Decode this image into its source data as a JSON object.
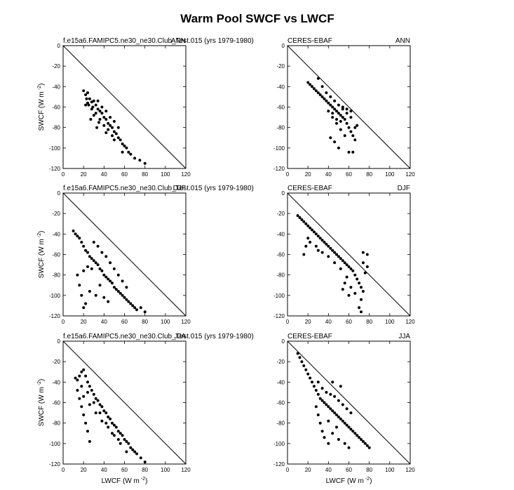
{
  "figure": {
    "title": "Warm Pool SWCF vs LWCF",
    "xlabel": "LWCF (W m",
    "ylabel": "SWCF (W m",
    "unit_exponent": "-2"
  },
  "chart_data": [
    {
      "type": "scatter",
      "left_label": "f.e15a6.FAMIPC5.ne30_ne30.Club_Test.015 (yrs 1979-1980)",
      "season": "ANN",
      "xlim": [
        0,
        120
      ],
      "ylim": [
        -120,
        0
      ],
      "xticks": [
        0,
        20,
        40,
        60,
        80,
        100,
        120
      ],
      "yticks": [
        0,
        -20,
        -40,
        -60,
        -80,
        -100,
        -120
      ],
      "reference_line": "1:1 (SWCF = -LWCF)",
      "points": [
        [
          20,
          -44
        ],
        [
          22,
          -48
        ],
        [
          24,
          -46
        ],
        [
          26,
          -52
        ],
        [
          28,
          -55
        ],
        [
          30,
          -54
        ],
        [
          32,
          -58
        ],
        [
          34,
          -62
        ],
        [
          36,
          -64
        ],
        [
          38,
          -66
        ],
        [
          40,
          -70
        ],
        [
          42,
          -72
        ],
        [
          44,
          -76
        ],
        [
          46,
          -78
        ],
        [
          48,
          -80
        ],
        [
          50,
          -84
        ],
        [
          52,
          -86
        ],
        [
          54,
          -90
        ],
        [
          56,
          -92
        ],
        [
          58,
          -96
        ],
        [
          60,
          -98
        ],
        [
          62,
          -100
        ],
        [
          64,
          -104
        ],
        [
          66,
          -106
        ],
        [
          70,
          -110
        ],
        [
          75,
          -112
        ],
        [
          80,
          -115
        ],
        [
          24,
          -56
        ],
        [
          28,
          -62
        ],
        [
          32,
          -66
        ],
        [
          36,
          -72
        ],
        [
          40,
          -78
        ],
        [
          44,
          -82
        ],
        [
          48,
          -88
        ],
        [
          25,
          -58
        ],
        [
          30,
          -68
        ],
        [
          35,
          -75
        ],
        [
          42,
          -85
        ],
        [
          50,
          -92
        ],
        [
          58,
          -104
        ],
        [
          34,
          -54
        ],
        [
          38,
          -60
        ],
        [
          42,
          -64
        ],
        [
          46,
          -70
        ],
        [
          50,
          -74
        ],
        [
          54,
          -80
        ],
        [
          22,
          -58
        ],
        [
          27,
          -72
        ],
        [
          33,
          -80
        ],
        [
          23,
          -52
        ],
        [
          29,
          -60
        ]
      ]
    },
    {
      "type": "scatter",
      "left_label": "CERES-EBAF",
      "season": "ANN",
      "xlim": [
        0,
        120
      ],
      "ylim": [
        -120,
        0
      ],
      "xticks": [
        0,
        20,
        40,
        60,
        80,
        100,
        120
      ],
      "yticks": [
        0,
        -20,
        -40,
        -60,
        -80,
        -100,
        -120
      ],
      "reference_line": "1:1 (SWCF = -LWCF)",
      "points": [
        [
          20,
          -36
        ],
        [
          22,
          -38
        ],
        [
          24,
          -40
        ],
        [
          26,
          -42
        ],
        [
          28,
          -44
        ],
        [
          30,
          -46
        ],
        [
          32,
          -48
        ],
        [
          34,
          -50
        ],
        [
          36,
          -52
        ],
        [
          38,
          -54
        ],
        [
          40,
          -56
        ],
        [
          42,
          -58
        ],
        [
          44,
          -60
        ],
        [
          46,
          -62
        ],
        [
          48,
          -64
        ],
        [
          50,
          -66
        ],
        [
          52,
          -68
        ],
        [
          54,
          -70
        ],
        [
          56,
          -72
        ],
        [
          58,
          -76
        ],
        [
          60,
          -80
        ],
        [
          62,
          -84
        ],
        [
          64,
          -88
        ],
        [
          66,
          -92
        ],
        [
          30,
          -32
        ],
        [
          34,
          -40
        ],
        [
          38,
          -46
        ],
        [
          42,
          -50
        ],
        [
          46,
          -54
        ],
        [
          50,
          -58
        ],
        [
          54,
          -62
        ],
        [
          58,
          -66
        ],
        [
          62,
          -70
        ],
        [
          40,
          -64
        ],
        [
          44,
          -70
        ],
        [
          48,
          -76
        ],
        [
          52,
          -82
        ],
        [
          56,
          -88
        ],
        [
          46,
          -94
        ],
        [
          50,
          -100
        ],
        [
          42,
          -90
        ],
        [
          60,
          -104
        ],
        [
          64,
          -104
        ],
        [
          66,
          -80
        ],
        [
          68,
          -78
        ],
        [
          54,
          -60
        ],
        [
          58,
          -62
        ],
        [
          62,
          -64
        ],
        [
          44,
          -66
        ],
        [
          48,
          -72
        ],
        [
          52,
          -74
        ]
      ]
    },
    {
      "type": "scatter",
      "left_label": "f.e15a6.FAMIPC5.ne30_ne30.Club_Test.015 (yrs 1979-1980)",
      "season": "DJF",
      "xlim": [
        0,
        120
      ],
      "ylim": [
        -120,
        0
      ],
      "xticks": [
        0,
        20,
        40,
        60,
        80,
        100,
        120
      ],
      "yticks": [
        0,
        -20,
        -40,
        -60,
        -80,
        -100,
        -120
      ],
      "reference_line": "1:1 (SWCF = -LWCF)",
      "points": [
        [
          10,
          -37
        ],
        [
          12,
          -40
        ],
        [
          14,
          -42
        ],
        [
          16,
          -44
        ],
        [
          18,
          -48
        ],
        [
          20,
          -52
        ],
        [
          22,
          -56
        ],
        [
          24,
          -58
        ],
        [
          26,
          -62
        ],
        [
          28,
          -64
        ],
        [
          30,
          -66
        ],
        [
          32,
          -68
        ],
        [
          34,
          -70
        ],
        [
          36,
          -74
        ],
        [
          38,
          -76
        ],
        [
          40,
          -80
        ],
        [
          42,
          -82
        ],
        [
          44,
          -84
        ],
        [
          46,
          -86
        ],
        [
          48,
          -88
        ],
        [
          50,
          -92
        ],
        [
          52,
          -94
        ],
        [
          54,
          -96
        ],
        [
          56,
          -98
        ],
        [
          58,
          -100
        ],
        [
          60,
          -102
        ],
        [
          62,
          -104
        ],
        [
          64,
          -106
        ],
        [
          66,
          -108
        ],
        [
          68,
          -110
        ],
        [
          70,
          -112
        ],
        [
          72,
          -114
        ],
        [
          76,
          -112
        ],
        [
          80,
          -116
        ],
        [
          30,
          -48
        ],
        [
          34,
          -52
        ],
        [
          38,
          -58
        ],
        [
          42,
          -62
        ],
        [
          46,
          -68
        ],
        [
          50,
          -74
        ],
        [
          54,
          -80
        ],
        [
          58,
          -86
        ],
        [
          62,
          -92
        ],
        [
          14,
          -80
        ],
        [
          16,
          -90
        ],
        [
          18,
          -100
        ],
        [
          20,
          -112
        ],
        [
          22,
          -108
        ],
        [
          20,
          -76
        ],
        [
          24,
          -72
        ],
        [
          28,
          -74
        ],
        [
          26,
          -96
        ],
        [
          32,
          -100
        ],
        [
          36,
          -90
        ],
        [
          40,
          -102
        ],
        [
          44,
          -106
        ]
      ]
    },
    {
      "type": "scatter",
      "left_label": "CERES-EBAF",
      "season": "DJF",
      "xlim": [
        0,
        120
      ],
      "ylim": [
        -120,
        0
      ],
      "xticks": [
        0,
        20,
        40,
        60,
        80,
        100,
        120
      ],
      "yticks": [
        0,
        -20,
        -40,
        -60,
        -80,
        -100,
        -120
      ],
      "reference_line": "1:1 (SWCF = -LWCF)",
      "points": [
        [
          10,
          -22
        ],
        [
          12,
          -24
        ],
        [
          14,
          -26
        ],
        [
          16,
          -28
        ],
        [
          18,
          -30
        ],
        [
          20,
          -32
        ],
        [
          22,
          -34
        ],
        [
          24,
          -36
        ],
        [
          26,
          -38
        ],
        [
          28,
          -40
        ],
        [
          30,
          -42
        ],
        [
          32,
          -44
        ],
        [
          34,
          -46
        ],
        [
          36,
          -48
        ],
        [
          38,
          -50
        ],
        [
          40,
          -52
        ],
        [
          42,
          -54
        ],
        [
          44,
          -56
        ],
        [
          46,
          -58
        ],
        [
          48,
          -60
        ],
        [
          50,
          -62
        ],
        [
          52,
          -64
        ],
        [
          54,
          -66
        ],
        [
          56,
          -68
        ],
        [
          58,
          -70
        ],
        [
          60,
          -72
        ],
        [
          62,
          -74
        ],
        [
          64,
          -76
        ],
        [
          66,
          -80
        ],
        [
          68,
          -84
        ],
        [
          70,
          -88
        ],
        [
          72,
          -92
        ],
        [
          74,
          -96
        ],
        [
          72,
          -104
        ],
        [
          70,
          -112
        ],
        [
          72,
          -116
        ],
        [
          76,
          -78
        ],
        [
          78,
          -72
        ],
        [
          74,
          -68
        ],
        [
          20,
          -44
        ],
        [
          18,
          -52
        ],
        [
          16,
          -60
        ],
        [
          22,
          -48
        ],
        [
          28,
          -52
        ],
        [
          34,
          -58
        ],
        [
          40,
          -62
        ],
        [
          46,
          -68
        ],
        [
          52,
          -74
        ],
        [
          58,
          -82
        ],
        [
          62,
          -92
        ],
        [
          66,
          -98
        ],
        [
          60,
          -100
        ],
        [
          54,
          -94
        ],
        [
          56,
          -88
        ],
        [
          30,
          -56
        ],
        [
          74,
          -58
        ],
        [
          78,
          -60
        ]
      ]
    },
    {
      "type": "scatter",
      "left_label": "f.e15a6.FAMIPC5.ne30_ne30.Club_Test.015 (yrs 1979-1980)",
      "season": "JJA",
      "xlim": [
        0,
        120
      ],
      "ylim": [
        -120,
        0
      ],
      "xticks": [
        0,
        20,
        40,
        60,
        80,
        100,
        120
      ],
      "yticks": [
        0,
        -20,
        -40,
        -60,
        -80,
        -100,
        -120
      ],
      "reference_line": "1:1 (SWCF = -LWCF)",
      "points": [
        [
          12,
          -36
        ],
        [
          14,
          -38
        ],
        [
          16,
          -34
        ],
        [
          18,
          -30
        ],
        [
          20,
          -28
        ],
        [
          22,
          -34
        ],
        [
          24,
          -40
        ],
        [
          26,
          -44
        ],
        [
          28,
          -48
        ],
        [
          30,
          -52
        ],
        [
          32,
          -56
        ],
        [
          34,
          -58
        ],
        [
          36,
          -62
        ],
        [
          38,
          -64
        ],
        [
          40,
          -68
        ],
        [
          42,
          -70
        ],
        [
          44,
          -74
        ],
        [
          46,
          -76
        ],
        [
          48,
          -80
        ],
        [
          50,
          -82
        ],
        [
          52,
          -84
        ],
        [
          54,
          -88
        ],
        [
          56,
          -90
        ],
        [
          58,
          -92
        ],
        [
          60,
          -96
        ],
        [
          62,
          -98
        ],
        [
          64,
          -100
        ],
        [
          66,
          -104
        ],
        [
          68,
          -106
        ],
        [
          70,
          -108
        ],
        [
          72,
          -110
        ],
        [
          76,
          -114
        ],
        [
          80,
          -118
        ],
        [
          14,
          -48
        ],
        [
          16,
          -56
        ],
        [
          18,
          -64
        ],
        [
          20,
          -72
        ],
        [
          22,
          -80
        ],
        [
          24,
          -88
        ],
        [
          26,
          -98
        ],
        [
          20,
          -54
        ],
        [
          26,
          -62
        ],
        [
          32,
          -70
        ],
        [
          38,
          -78
        ],
        [
          44,
          -84
        ],
        [
          50,
          -92
        ],
        [
          56,
          -100
        ],
        [
          62,
          -108
        ],
        [
          18,
          -44
        ],
        [
          24,
          -50
        ],
        [
          30,
          -60
        ],
        [
          36,
          -70
        ],
        [
          42,
          -80
        ],
        [
          48,
          -90
        ],
        [
          54,
          -96
        ]
      ]
    },
    {
      "type": "scatter",
      "left_label": "CERES-EBAF",
      "season": "JJA",
      "xlim": [
        0,
        120
      ],
      "ylim": [
        -120,
        0
      ],
      "xticks": [
        0,
        20,
        40,
        60,
        80,
        100,
        120
      ],
      "yticks": [
        0,
        -20,
        -40,
        -60,
        -80,
        -100,
        -120
      ],
      "reference_line": "1:1 (SWCF = -LWCF)",
      "points": [
        [
          10,
          -12
        ],
        [
          12,
          -16
        ],
        [
          14,
          -20
        ],
        [
          16,
          -24
        ],
        [
          18,
          -28
        ],
        [
          20,
          -32
        ],
        [
          22,
          -36
        ],
        [
          24,
          -40
        ],
        [
          26,
          -44
        ],
        [
          28,
          -48
        ],
        [
          30,
          -52
        ],
        [
          32,
          -56
        ],
        [
          34,
          -58
        ],
        [
          36,
          -60
        ],
        [
          38,
          -62
        ],
        [
          40,
          -64
        ],
        [
          42,
          -66
        ],
        [
          44,
          -68
        ],
        [
          46,
          -70
        ],
        [
          48,
          -72
        ],
        [
          50,
          -74
        ],
        [
          52,
          -76
        ],
        [
          54,
          -78
        ],
        [
          56,
          -80
        ],
        [
          58,
          -82
        ],
        [
          60,
          -84
        ],
        [
          62,
          -86
        ],
        [
          64,
          -88
        ],
        [
          66,
          -90
        ],
        [
          68,
          -92
        ],
        [
          70,
          -94
        ],
        [
          72,
          -96
        ],
        [
          74,
          -98
        ],
        [
          76,
          -100
        ],
        [
          78,
          -102
        ],
        [
          80,
          -104
        ],
        [
          30,
          -40
        ],
        [
          34,
          -46
        ],
        [
          38,
          -50
        ],
        [
          42,
          -52
        ],
        [
          46,
          -54
        ],
        [
          50,
          -58
        ],
        [
          54,
          -62
        ],
        [
          58,
          -66
        ],
        [
          62,
          -70
        ],
        [
          28,
          -64
        ],
        [
          30,
          -72
        ],
        [
          32,
          -80
        ],
        [
          34,
          -88
        ],
        [
          36,
          -94
        ],
        [
          40,
          -100
        ],
        [
          44,
          -90
        ],
        [
          50,
          -96
        ],
        [
          56,
          -100
        ],
        [
          60,
          -104
        ],
        [
          40,
          -78
        ],
        [
          48,
          -84
        ],
        [
          44,
          -40
        ],
        [
          52,
          -44
        ]
      ]
    }
  ]
}
